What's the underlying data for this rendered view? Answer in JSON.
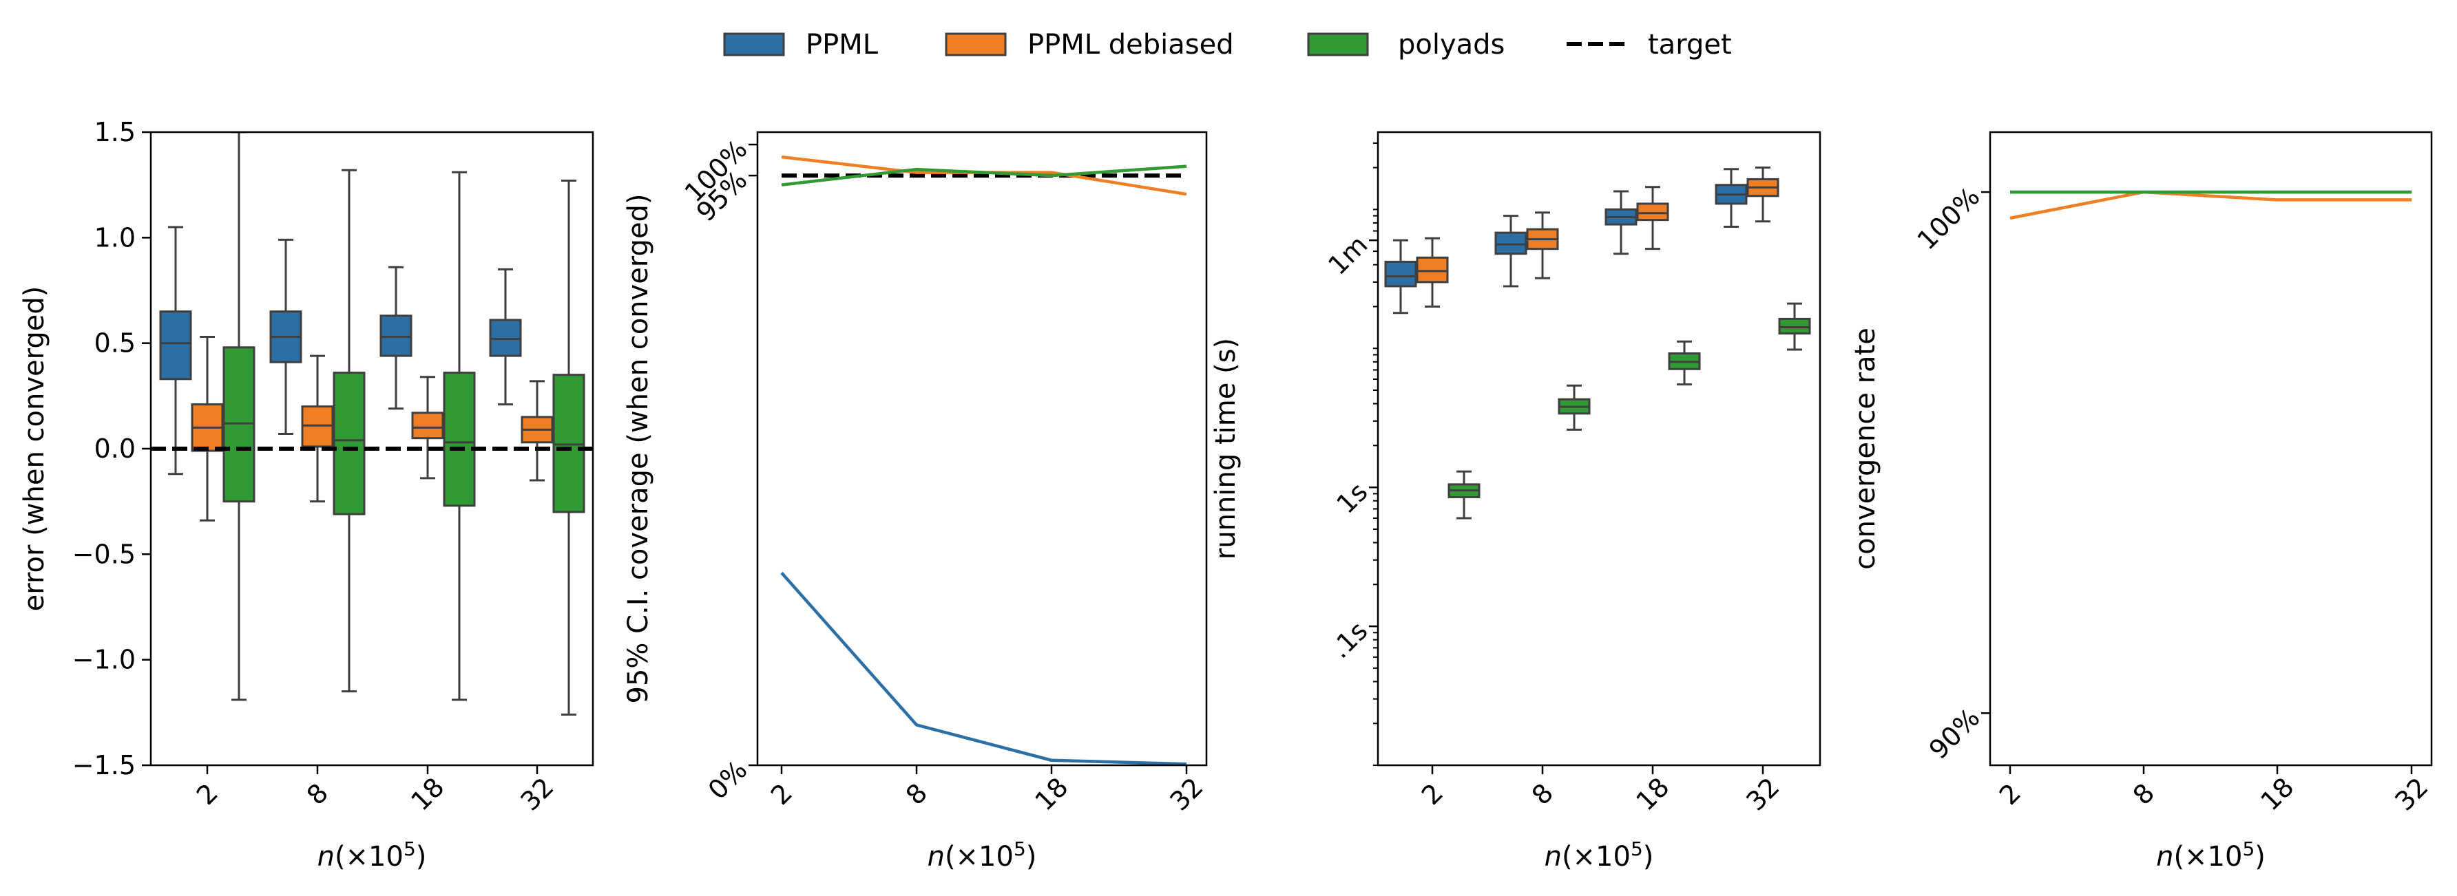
{
  "colors": {
    "PPML": "#2c6fa4",
    "PPML debiased": "#ef7f24",
    "polyads": "#329a35",
    "target": "#000000",
    "box_edge": "#3f3f3f"
  },
  "legend": {
    "placement": "top-center",
    "items": [
      {
        "label": "PPML",
        "kind": "patch",
        "color_key": "PPML"
      },
      {
        "label": "PPML debiased",
        "kind": "patch",
        "color_key": "PPML debiased"
      },
      {
        "label": "polyads",
        "kind": "patch",
        "color_key": "polyads"
      },
      {
        "label": "target",
        "kind": "dashed-line",
        "color_key": "target"
      }
    ]
  },
  "chart_data": [
    {
      "type": "box",
      "xlabel": "n(×10⁵)",
      "ylabel": "error (when converged)",
      "categories": [
        "2",
        "8",
        "18",
        "32"
      ],
      "ylim": [
        -1.5,
        1.5
      ],
      "yticks": [
        -1.5,
        -1.0,
        -0.5,
        0.0,
        0.5,
        1.0,
        1.5
      ],
      "ytick_labels": [
        "−1.5",
        "−1.0",
        "−0.5",
        "0.0",
        "0.5",
        "1.0",
        "1.5"
      ],
      "target": 0.0,
      "series": [
        {
          "name": "PPML",
          "boxes": [
            {
              "whislo": -0.12,
              "q1": 0.33,
              "med": 0.5,
              "q3": 0.65,
              "whishi": 1.05
            },
            {
              "whislo": 0.07,
              "q1": 0.41,
              "med": 0.53,
              "q3": 0.65,
              "whishi": 0.99
            },
            {
              "whislo": 0.19,
              "q1": 0.44,
              "med": 0.53,
              "q3": 0.63,
              "whishi": 0.86
            },
            {
              "whislo": 0.21,
              "q1": 0.44,
              "med": 0.52,
              "q3": 0.61,
              "whishi": 0.85
            }
          ]
        },
        {
          "name": "PPML debiased",
          "boxes": [
            {
              "whislo": -0.34,
              "q1": -0.01,
              "med": 0.1,
              "q3": 0.21,
              "whishi": 0.53
            },
            {
              "whislo": -0.25,
              "q1": 0.01,
              "med": 0.11,
              "q3": 0.2,
              "whishi": 0.44
            },
            {
              "whislo": -0.14,
              "q1": 0.05,
              "med": 0.1,
              "q3": 0.17,
              "whishi": 0.34
            },
            {
              "whislo": -0.15,
              "q1": 0.03,
              "med": 0.09,
              "q3": 0.15,
              "whishi": 0.32
            }
          ]
        },
        {
          "name": "polyads",
          "boxes": [
            {
              "whislo": -1.19,
              "q1": -0.25,
              "med": 0.12,
              "q3": 0.48,
              "whishi": 1.5
            },
            {
              "whislo": -1.15,
              "q1": -0.31,
              "med": 0.04,
              "q3": 0.36,
              "whishi": 1.32
            },
            {
              "whislo": -1.19,
              "q1": -0.27,
              "med": 0.03,
              "q3": 0.36,
              "whishi": 1.31
            },
            {
              "whislo": -1.26,
              "q1": -0.3,
              "med": 0.02,
              "q3": 0.35,
              "whishi": 1.27
            }
          ]
        }
      ]
    },
    {
      "type": "line",
      "xlabel": "n(×10⁵)",
      "ylabel": "95% C.I. coverage (when converged)",
      "categories": [
        "2",
        "8",
        "18",
        "32"
      ],
      "ylim": [
        0,
        102
      ],
      "yticks": [
        0,
        95,
        100
      ],
      "ytick_labels": [
        "0%",
        "95%",
        "100%"
      ],
      "target": 95,
      "series": [
        {
          "name": "PPML",
          "values": [
            31,
            6.5,
            0.8,
            0.2
          ]
        },
        {
          "name": "PPML debiased",
          "values": [
            98,
            95.5,
            95.5,
            92
          ]
        },
        {
          "name": "polyads",
          "values": [
            93.5,
            96,
            95,
            96.5
          ]
        }
      ]
    },
    {
      "type": "box",
      "xlabel": "n(×10⁵)",
      "ylabel": "running time (s)",
      "yscale": "log",
      "categories": [
        "2",
        "8",
        "18",
        "32"
      ],
      "ylim_seconds": [
        0.01,
        360
      ],
      "yticks_seconds": [
        0.1,
        1,
        60
      ],
      "ytick_labels": [
        ".1s",
        "1s",
        "1m"
      ],
      "series": [
        {
          "name": "PPML",
          "boxes": [
            {
              "whislo": 18,
              "q1": 28,
              "med": 33,
              "q3": 42,
              "whishi": 60
            },
            {
              "whislo": 28,
              "q1": 48,
              "med": 56,
              "q3": 68,
              "whishi": 90
            },
            {
              "whislo": 48,
              "q1": 78,
              "med": 88,
              "q3": 100,
              "whishi": 135
            },
            {
              "whislo": 75,
              "q1": 110,
              "med": 128,
              "q3": 150,
              "whishi": 195
            }
          ]
        },
        {
          "name": "PPML debiased",
          "boxes": [
            {
              "whislo": 20,
              "q1": 30,
              "med": 36,
              "q3": 45,
              "whishi": 62
            },
            {
              "whislo": 32,
              "q1": 52,
              "med": 61,
              "q3": 72,
              "whishi": 95
            },
            {
              "whislo": 52,
              "q1": 84,
              "med": 94,
              "q3": 110,
              "whishi": 145
            },
            {
              "whislo": 82,
              "q1": 125,
              "med": 144,
              "q3": 165,
              "whishi": 200
            }
          ]
        },
        {
          "name": "polyads",
          "boxes": [
            {
              "whislo": 0.6,
              "q1": 0.85,
              "med": 0.95,
              "q3": 1.05,
              "whishi": 1.3
            },
            {
              "whislo": 2.6,
              "q1": 3.4,
              "med": 3.8,
              "q3": 4.3,
              "whishi": 5.4
            },
            {
              "whislo": 5.5,
              "q1": 7.1,
              "med": 8.0,
              "q3": 9.2,
              "whishi": 11.2
            },
            {
              "whislo": 9.8,
              "q1": 12.8,
              "med": 14.2,
              "q3": 16.3,
              "whishi": 21.0
            }
          ]
        }
      ]
    },
    {
      "type": "line",
      "xlabel": "n(×10⁵)",
      "ylabel": "convergence rate",
      "categories": [
        "2",
        "8",
        "18",
        "32"
      ],
      "ylim": [
        89,
        101.15
      ],
      "yticks": [
        90,
        100
      ],
      "ytick_labels": [
        "90%",
        "100%"
      ],
      "series": [
        {
          "name": "PPML",
          "values": [
            100,
            100,
            100,
            100
          ]
        },
        {
          "name": "PPML debiased",
          "values": [
            99.5,
            100,
            99.85,
            99.85
          ]
        },
        {
          "name": "polyads",
          "values": [
            100,
            100,
            100,
            100
          ]
        }
      ]
    }
  ]
}
